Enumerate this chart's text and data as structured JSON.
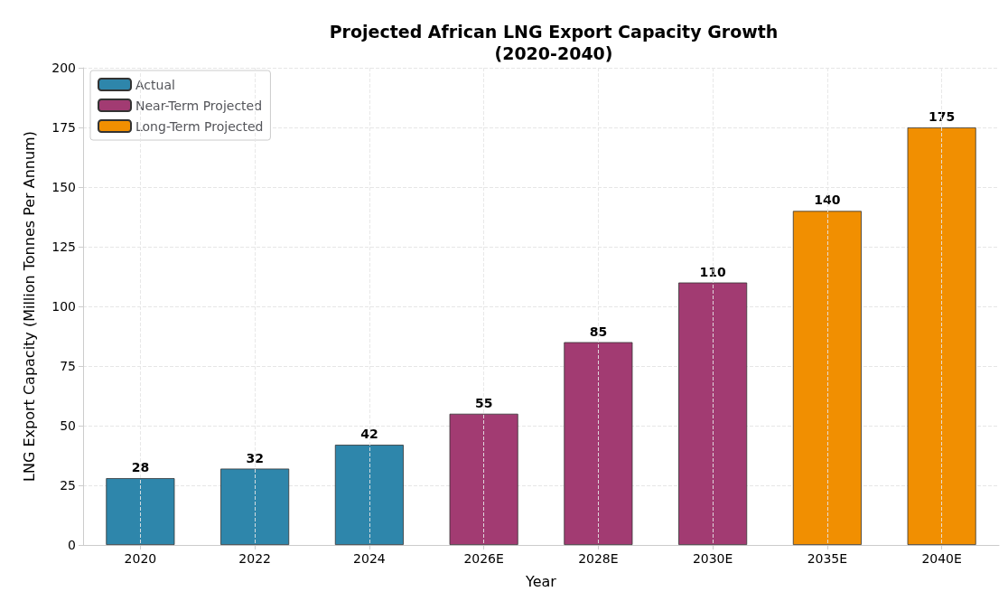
{
  "chart_data": {
    "type": "bar",
    "title": "Projected African LNG Export Capacity Growth\n(2020-2040)",
    "xlabel": "Year",
    "ylabel": "LNG Export Capacity (Million Tonnes Per Annum)",
    "categories": [
      "2020",
      "2022",
      "2024",
      "2026E",
      "2028E",
      "2030E",
      "2035E",
      "2040E"
    ],
    "series": [
      {
        "name": "Actual",
        "color": "#2e86ab",
        "values": [
          28,
          32,
          42,
          null,
          null,
          null,
          null,
          null
        ]
      },
      {
        "name": "Near-Term Projected",
        "color": "#a23b72",
        "values": [
          null,
          null,
          null,
          55,
          85,
          110,
          null,
          null
        ]
      },
      {
        "name": "Long-Term Projected",
        "color": "#f18f01",
        "values": [
          null,
          null,
          null,
          null,
          null,
          null,
          140,
          175
        ]
      }
    ],
    "ylim": [
      0,
      200
    ],
    "yticks": [
      0,
      25,
      50,
      75,
      100,
      125,
      150,
      175,
      200
    ],
    "grid": true,
    "legend": "top left",
    "data_labels": true
  }
}
